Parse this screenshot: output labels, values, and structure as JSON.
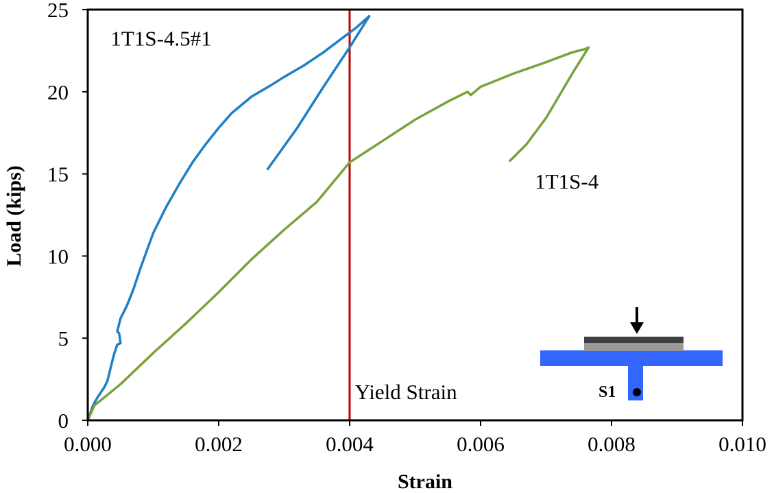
{
  "chart_data": {
    "type": "line",
    "xlabel": "Strain",
    "ylabel": "Load (kips)",
    "xlim": [
      0.0,
      0.01
    ],
    "ylim": [
      0,
      25
    ],
    "x_ticks": [
      "0.000",
      "0.002",
      "0.004",
      "0.006",
      "0.008",
      "0.010"
    ],
    "y_ticks": [
      "0",
      "5",
      "10",
      "15",
      "20",
      "25"
    ],
    "grid": false,
    "series": [
      {
        "name": "1T1S-4.5#1",
        "color": "#1f7fc4",
        "points": [
          [
            0.0,
            0.0
          ],
          [
            8e-05,
            0.9
          ],
          [
            0.00015,
            1.4
          ],
          [
            0.00025,
            2.0
          ],
          [
            0.0003,
            2.4
          ],
          [
            0.00035,
            3.2
          ],
          [
            0.0004,
            4.0
          ],
          [
            0.00045,
            4.6
          ],
          [
            0.0005,
            4.7
          ],
          [
            0.00048,
            5.3
          ],
          [
            0.00045,
            5.4
          ],
          [
            0.0005,
            6.2
          ],
          [
            0.0006,
            7.0
          ],
          [
            0.0007,
            8.0
          ],
          [
            0.0008,
            9.2
          ],
          [
            0.0009,
            10.3
          ],
          [
            0.001,
            11.4
          ],
          [
            0.0012,
            13.0
          ],
          [
            0.0014,
            14.4
          ],
          [
            0.0016,
            15.7
          ],
          [
            0.0018,
            16.8
          ],
          [
            0.002,
            17.8
          ],
          [
            0.0022,
            18.7
          ],
          [
            0.0025,
            19.7
          ],
          [
            0.0028,
            20.4
          ],
          [
            0.003,
            20.9
          ],
          [
            0.0033,
            21.6
          ],
          [
            0.0036,
            22.4
          ],
          [
            0.0039,
            23.3
          ],
          [
            0.0041,
            23.9
          ],
          [
            0.0043,
            24.6
          ],
          [
            0.004,
            22.7
          ],
          [
            0.0036,
            20.3
          ],
          [
            0.0032,
            17.8
          ],
          [
            0.00275,
            15.3
          ]
        ]
      },
      {
        "name": "1T1S-4",
        "color": "#79a23c",
        "points": [
          [
            0.0,
            0.0
          ],
          [
            0.0001,
            0.9
          ],
          [
            0.0005,
            2.2
          ],
          [
            0.001,
            4.1
          ],
          [
            0.0015,
            5.9
          ],
          [
            0.002,
            7.8
          ],
          [
            0.0025,
            9.8
          ],
          [
            0.003,
            11.6
          ],
          [
            0.0035,
            13.3
          ],
          [
            0.004,
            15.7
          ],
          [
            0.0045,
            17.0
          ],
          [
            0.005,
            18.3
          ],
          [
            0.0055,
            19.4
          ],
          [
            0.0058,
            20.0
          ],
          [
            0.00585,
            19.8
          ],
          [
            0.006,
            20.3
          ],
          [
            0.0065,
            21.1
          ],
          [
            0.007,
            21.8
          ],
          [
            0.0074,
            22.4
          ],
          [
            0.0076,
            22.6
          ],
          [
            0.00765,
            22.7
          ],
          [
            0.0074,
            21.1
          ],
          [
            0.007,
            18.4
          ],
          [
            0.0067,
            16.8
          ],
          [
            0.00645,
            15.8
          ]
        ]
      }
    ],
    "reference_line": {
      "x": 0.004,
      "label": "Yield Strain",
      "color": "#c00000"
    },
    "annotations": [
      {
        "text": "1T1S-4.5#1",
        "x": 0.00035,
        "y": 22.8
      },
      {
        "text": "1T1S-4",
        "x": 0.00683,
        "y": 14.1
      },
      {
        "text": "Yield Strain",
        "x": 0.00408,
        "y": 1.3
      }
    ],
    "inset": {
      "label": "S1",
      "flange_color": "#3366ff",
      "plate_color": "#999999",
      "load_bar_color": "#404040"
    }
  }
}
